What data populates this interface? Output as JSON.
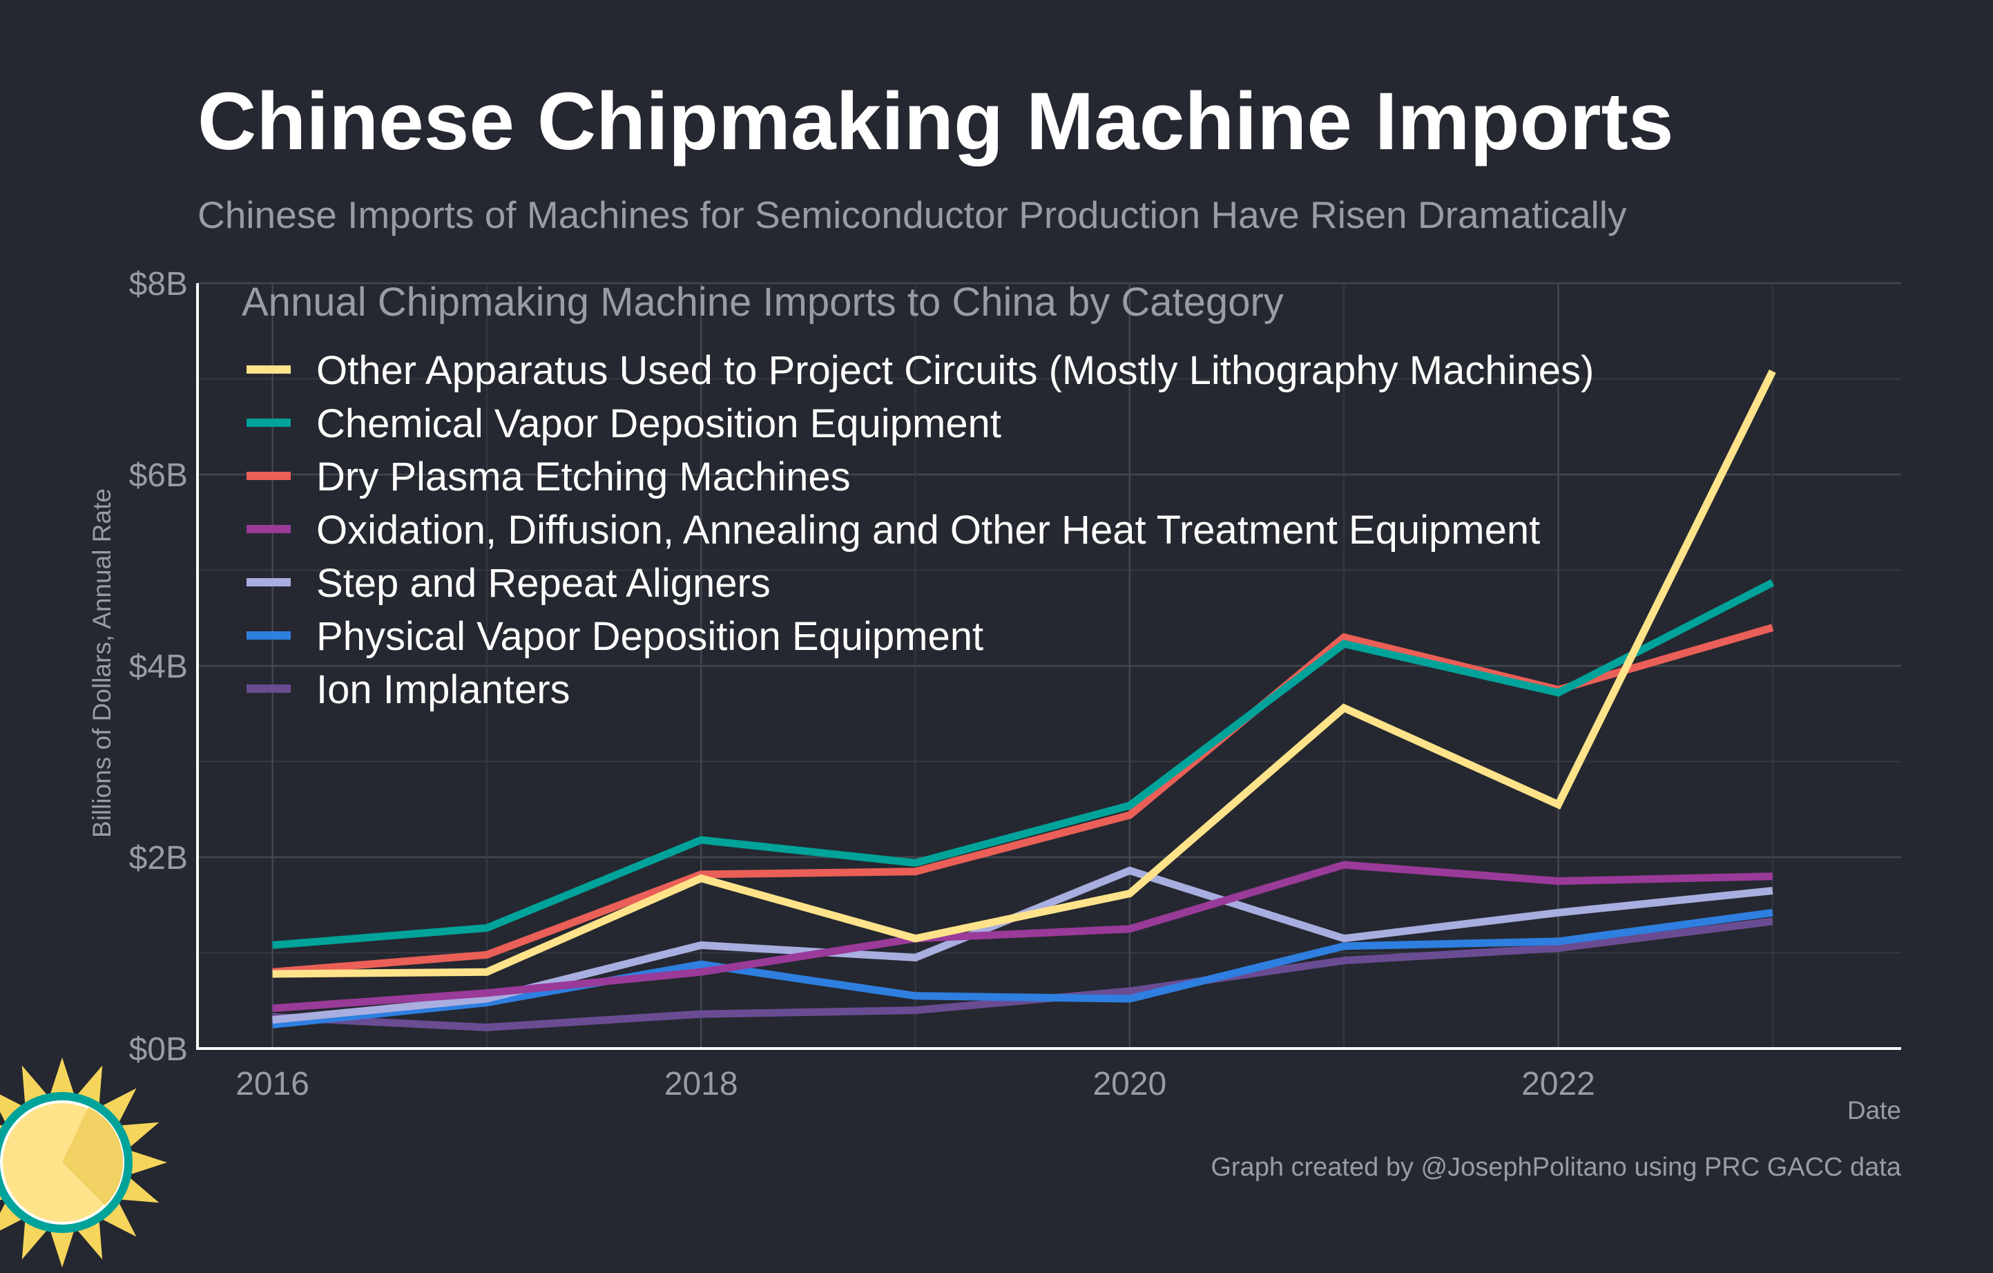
{
  "chart_data": {
    "type": "line",
    "title": "Chinese Chipmaking Machine Imports",
    "subtitle": "Chinese Imports of Machines for Semiconductor Production Have Risen Dramatically",
    "xlabel": "Date",
    "ylabel": "Billions of Dollars, Annual Rate",
    "credit": "Graph created by @JosephPolitano using PRC GACC data",
    "legend_title": "Annual Chipmaking Machine Imports to China by Category",
    "legend_position": "top-left",
    "grid": true,
    "x": [
      2016,
      2017,
      2018,
      2019,
      2020,
      2021,
      2022,
      2023
    ],
    "xlim": [
      2015.65,
      2023.6
    ],
    "ylim": [
      0,
      8
    ],
    "x_ticks": [
      2016,
      2018,
      2020,
      2022
    ],
    "x_tick_labels": [
      "2016",
      "2018",
      "2020",
      "2022"
    ],
    "y_ticks": [
      0,
      2,
      4,
      6,
      8
    ],
    "y_tick_labels": [
      "$0B",
      "$2B",
      "$4B",
      "$6B",
      "$8B"
    ],
    "series": [
      {
        "name": "Ion Implanters",
        "color": "#6a4c93",
        "values": [
          0.33,
          0.22,
          0.36,
          0.4,
          0.6,
          0.92,
          1.05,
          1.33
        ]
      },
      {
        "name": "Physical Vapor Deposition Equipment",
        "color": "#2e7fe0",
        "values": [
          0.25,
          0.48,
          0.88,
          0.55,
          0.52,
          1.07,
          1.12,
          1.42
        ]
      },
      {
        "name": "Step and Repeat Aligners",
        "color": "#a9aee0",
        "values": [
          0.3,
          0.52,
          1.08,
          0.95,
          1.86,
          1.15,
          1.42,
          1.65
        ]
      },
      {
        "name": "Oxidation, Diffusion, Annealing and Other Heat Treatment Equipment",
        "color": "#9a3a99",
        "values": [
          0.42,
          0.58,
          0.8,
          1.15,
          1.25,
          1.92,
          1.75,
          1.8
        ]
      },
      {
        "name": "Dry Plasma Etching Machines",
        "color": "#ea5f57",
        "values": [
          0.8,
          0.98,
          1.82,
          1.85,
          2.44,
          4.3,
          3.75,
          4.4
        ]
      },
      {
        "name": "Chemical Vapor Deposition Equipment",
        "color": "#00a39a",
        "values": [
          1.08,
          1.26,
          2.18,
          1.94,
          2.54,
          4.23,
          3.72,
          4.87
        ]
      },
      {
        "name": "Other Apparatus Used to Project Circuits (Mostly Lithography Machines)",
        "color": "#ffe38a",
        "values": [
          0.78,
          0.8,
          1.78,
          1.15,
          1.62,
          3.56,
          2.55,
          7.08
        ]
      }
    ],
    "legend_order": [
      6,
      5,
      4,
      3,
      2,
      1,
      0
    ]
  }
}
